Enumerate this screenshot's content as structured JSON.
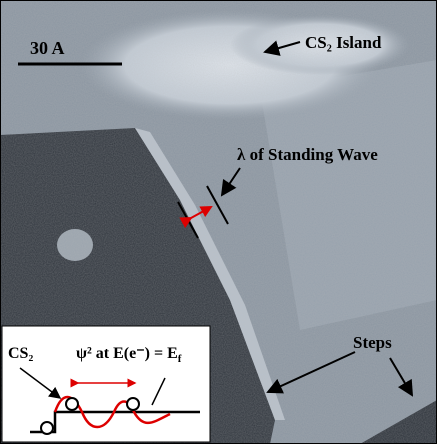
{
  "scale_bar": "30 A",
  "island_label": "CS₂ Island",
  "wave_label": "λ of Standing Wave",
  "steps_label": "Steps",
  "inset": {
    "molecule_label": "CS₂",
    "equation": {
      "main": "ψ² at E(e⁻) = E",
      "sub": "f"
    }
  }
}
